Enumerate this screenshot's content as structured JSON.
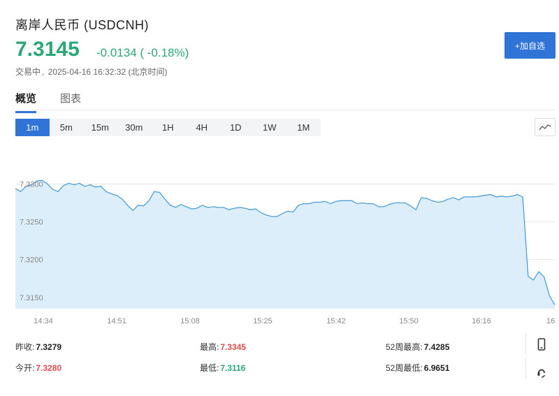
{
  "header": {
    "title": "离岸人民币 (USDCNH)",
    "price": "7.3145",
    "change": "-0.0134 ( -0.18%)",
    "status": "交易中",
    "datetime": "2025-04-16 16:32:32 (北京时间)"
  },
  "add_button": {
    "label": "+加自选"
  },
  "tabs": [
    {
      "label": "概览",
      "active": true
    },
    {
      "label": "图表",
      "active": false
    }
  ],
  "periods": [
    {
      "label": "1m",
      "active": true
    },
    {
      "label": "5m",
      "active": false
    },
    {
      "label": "15m",
      "active": false
    },
    {
      "label": "30m",
      "active": false
    },
    {
      "label": "1H",
      "active": false
    },
    {
      "label": "4H",
      "active": false
    },
    {
      "label": "1D",
      "active": false
    },
    {
      "label": "1W",
      "active": false
    },
    {
      "label": "1M",
      "active": false
    }
  ],
  "colors": {
    "up": "#e54b4b",
    "down": "#2aa876",
    "accent": "#2f74d6",
    "area": "#ddeefb",
    "line": "#4a9fd8"
  },
  "chart_data": {
    "type": "area",
    "ylim": [
      7.3135,
      7.3355
    ],
    "yticks": [
      {
        "value": 7.33,
        "label": "7.3300"
      },
      {
        "value": 7.325,
        "label": "7.3250"
      },
      {
        "value": 7.32,
        "label": "7.3200"
      },
      {
        "value": 7.315,
        "label": "7.3150"
      }
    ],
    "xticks": [
      "14:34",
      "14:51",
      "15:08",
      "15:25",
      "15:42",
      "15:50",
      "16:16",
      "16"
    ],
    "values": [
      7.3294,
      7.329,
      7.3297,
      7.3299,
      7.3304,
      7.3305,
      7.33,
      7.3293,
      7.329,
      7.3298,
      7.3301,
      7.3299,
      7.3301,
      7.3297,
      7.3299,
      7.3296,
      7.3297,
      7.329,
      7.3287,
      7.3285,
      7.328,
      7.3272,
      7.3265,
      7.3272,
      7.3271,
      7.3278,
      7.329,
      7.3289,
      7.328,
      7.3272,
      7.3269,
      7.3273,
      7.327,
      7.3267,
      7.3268,
      7.3272,
      7.3269,
      7.327,
      7.3269,
      7.3269,
      7.3266,
      7.3268,
      7.3269,
      7.3268,
      7.3266,
      7.3267,
      7.3262,
      7.3259,
      7.3257,
      7.3257,
      7.3261,
      7.3264,
      7.3263,
      7.3272,
      7.3274,
      7.3274,
      7.3276,
      7.3276,
      7.3277,
      7.3274,
      7.3277,
      7.3278,
      7.3278,
      7.3278,
      7.3274,
      7.3275,
      7.3274,
      7.3274,
      7.327,
      7.327,
      7.3273,
      7.3275,
      7.3275,
      7.3275,
      7.3271,
      7.3266,
      7.3282,
      7.3281,
      7.3278,
      7.3276,
      7.3277,
      7.328,
      7.3282,
      7.3279,
      7.3283,
      7.3283,
      7.3283,
      7.3284,
      7.3285,
      7.3286,
      7.3283,
      7.3284,
      7.3283,
      7.3284,
      7.3286,
      7.3283,
      7.3178,
      7.3173,
      7.3184,
      7.3177,
      7.3152,
      7.314
    ]
  },
  "stats": {
    "prev_close_label": "昨收:",
    "prev_close": "7.3279",
    "high_label": "最高:",
    "high": "7.3345",
    "high52_label": "52周最高:",
    "high52": "7.4285",
    "open_label": "今开:",
    "open": "7.3280",
    "low_label": "最低:",
    "low": "7.3116",
    "low52_label": "52周最低:",
    "low52": "6.9651"
  },
  "side_icons": [
    "mobile-icon",
    "customer-service-icon"
  ]
}
